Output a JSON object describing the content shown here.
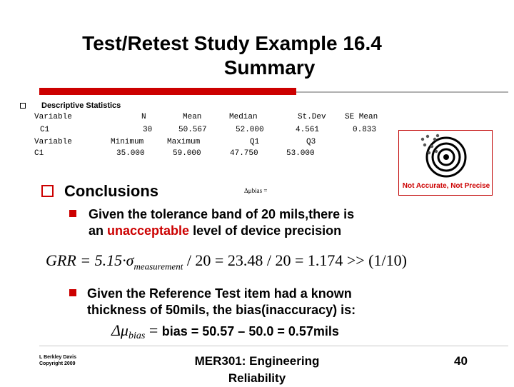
{
  "title": {
    "line1": "Test/Retest Study Example 16.4",
    "line2": "Summary"
  },
  "stats": {
    "header": "Descriptive Statistics",
    "row1": [
      "Variable",
      "N",
      "Mean",
      "Median",
      "St.Dev",
      "SE Mean"
    ],
    "row2": [
      "C1",
      "30",
      "50.567",
      "52.000",
      "4.561",
      "0.833"
    ],
    "row3": [
      "Variable",
      "Minimum",
      "Maximum",
      "Q1",
      "Q3"
    ],
    "row4": [
      "C1",
      "35.000",
      "59.000",
      "47.750",
      "53.000"
    ]
  },
  "target_label": "Not Accurate, Not Precise",
  "conclusions": {
    "heading": "Conclusions",
    "small_formula": "Δμbias =",
    "bullet1": {
      "line1": "Given the tolerance band of 20 mils,there is",
      "line2_before": "an ",
      "line2_highlight": "unacceptable",
      "line2_after": " level of device precision"
    },
    "eq1": {
      "lhs": "GRR = 5.15·σ",
      "sub": "measurement",
      "rhs": " / 20 = 23.48 / 20 = 1.174 >> (1/10)"
    },
    "bullet2": {
      "line1": "Given the Reference Test item had a known",
      "line2": "thickness of 50mils, the bias(inaccuracy) is:"
    },
    "eq2": {
      "lhs": "Δμ",
      "sub": "bias",
      "equals": " = ",
      "rhs": "bias = 50.57 – 50.0 = 0.57mils"
    }
  },
  "footer": {
    "author_line1": "L Berkley Davis",
    "author_line2": "Copyright 2009",
    "course_line1": "MER301: Engineering",
    "course_line2": "Reliability",
    "page": "40"
  },
  "colors": {
    "accent_red": "#cc0000"
  }
}
